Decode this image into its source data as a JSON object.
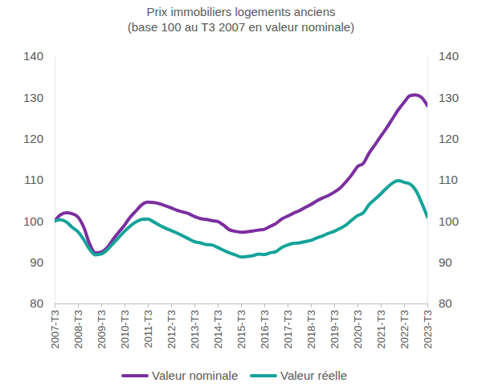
{
  "chart_data": {
    "type": "line",
    "title": "Prix immobiliers logements anciens",
    "subtitle": "(base 100 au T3 2007 en valeur nominale)",
    "categories": [
      "2007-T3",
      null,
      null,
      null,
      "2008-T3",
      null,
      null,
      null,
      "2009-T3",
      null,
      null,
      null,
      "2010-T3",
      null,
      null,
      null,
      "2011-T3",
      null,
      null,
      null,
      "2012-T3",
      null,
      null,
      null,
      "2013-T3",
      null,
      null,
      null,
      "2014-T3",
      null,
      null,
      null,
      "2015-T3",
      null,
      null,
      null,
      "2016-T3",
      null,
      null,
      null,
      "2017-T3",
      null,
      null,
      null,
      "2018-T3",
      null,
      null,
      null,
      "2019-T3",
      null,
      null,
      null,
      "2020-T3",
      null,
      null,
      null,
      "2021-T3",
      null,
      null,
      null,
      "2022-T3",
      null,
      null,
      null,
      "2023-T3"
    ],
    "series": [
      {
        "name": "Valeur nominale",
        "color": "#7b2fa0",
        "values": [
          100,
          101.5,
          102,
          101.8,
          101,
          98.5,
          94.5,
          92.3,
          92.5,
          93.5,
          95.5,
          97.3,
          99,
          101,
          102.5,
          104,
          104.6,
          104.5,
          104.2,
          103.7,
          103.2,
          102.6,
          102.2,
          101.8,
          101.1,
          100.6,
          100.4,
          100.1,
          99.9,
          99.0,
          97.9,
          97.5,
          97.3,
          97.4,
          97.6,
          97.8,
          98.0,
          98.7,
          99.4,
          100.5,
          101.2,
          101.9,
          102.5,
          103.3,
          104.0,
          104.9,
          105.6,
          106.2,
          107.0,
          108.0,
          109.5,
          111.2,
          113.2,
          114.0,
          116.5,
          118.5,
          120.6,
          122.6,
          124.8,
          127.0,
          128.8,
          130.4,
          130.6,
          130.0,
          128.0
        ]
      },
      {
        "name": "Valeur réelle",
        "color": "#14a39a",
        "values": [
          100,
          100.3,
          99.8,
          98.5,
          97.4,
          95.5,
          93.2,
          91.8,
          92.0,
          93.0,
          94.5,
          96.0,
          97.5,
          98.8,
          99.8,
          100.4,
          100.5,
          99.8,
          99.0,
          98.3,
          97.7,
          97.1,
          96.4,
          95.7,
          95.0,
          94.7,
          94.3,
          94.2,
          93.6,
          92.9,
          92.3,
          91.8,
          91.3,
          91.4,
          91.6,
          92.0,
          91.9,
          92.3,
          92.6,
          93.6,
          94.2,
          94.6,
          94.7,
          95.0,
          95.3,
          95.9,
          96.4,
          97.0,
          97.5,
          98.2,
          99.0,
          100.2,
          101.3,
          102.0,
          104.0,
          105.3,
          106.6,
          108.0,
          109.2,
          109.8,
          109.4,
          109.0,
          107.5,
          104.5,
          101.0
        ]
      }
    ],
    "ylim": [
      80,
      140
    ],
    "yticks": [
      80,
      90,
      100,
      110,
      120,
      130,
      140
    ],
    "grid": false,
    "legend": "bottom"
  }
}
